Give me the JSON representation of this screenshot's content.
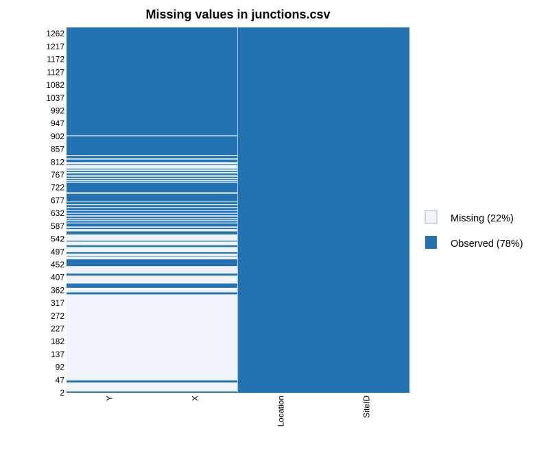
{
  "chart_data": {
    "type": "heatmap",
    "title": "Missing values in junctions.csv",
    "columns": [
      "Y",
      "X",
      "Location",
      "SiteID"
    ],
    "row_range": [
      1,
      1283
    ],
    "y_tick_labels": [
      "1262",
      "1217",
      "1172",
      "1127",
      "1082",
      "1037",
      "992",
      "947",
      "902",
      "857",
      "812",
      "767",
      "722",
      "677",
      "632",
      "587",
      "542",
      "497",
      "452",
      "407",
      "362",
      "317",
      "272",
      "227",
      "182",
      "137",
      "92",
      "47",
      "2"
    ],
    "legend": {
      "position": "right",
      "items": [
        {
          "label": "Missing (22%)",
          "color": "#eef3fc"
        },
        {
          "label": "Observed (78%)",
          "color": "#2272b4"
        }
      ]
    },
    "colors": {
      "missing": "#eef3fc",
      "observed": "#2272b4"
    },
    "fully_observed_columns": [
      "Location",
      "SiteID"
    ],
    "missing_row_ranges_YX": [
      [
        6,
        37
      ],
      [
        45,
        346
      ],
      [
        354,
        369
      ],
      [
        385,
        412
      ],
      [
        420,
        445
      ],
      [
        470,
        478
      ],
      [
        481,
        489
      ],
      [
        495,
        512
      ],
      [
        519,
        531
      ],
      [
        535,
        556
      ],
      [
        568,
        575
      ],
      [
        580,
        584
      ],
      [
        596,
        598
      ],
      [
        604,
        606
      ],
      [
        610,
        613
      ],
      [
        620,
        623
      ],
      [
        630,
        632
      ],
      [
        640,
        642
      ],
      [
        650,
        652
      ],
      [
        660,
        662
      ],
      [
        670,
        672
      ],
      [
        700,
        704
      ],
      [
        738,
        740
      ],
      [
        744,
        747
      ],
      [
        752,
        754
      ],
      [
        760,
        764
      ],
      [
        771,
        775
      ],
      [
        780,
        784
      ],
      [
        788,
        800
      ],
      [
        804,
        810
      ],
      [
        820,
        823
      ],
      [
        833,
        835
      ],
      [
        902,
        904
      ]
    ]
  }
}
